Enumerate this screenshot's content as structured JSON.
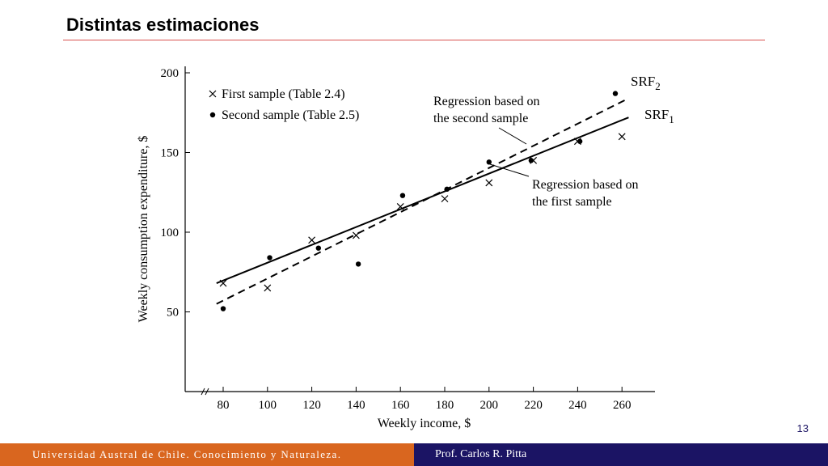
{
  "slide": {
    "title": "Distintas estimaciones",
    "page_number": "13",
    "footer_left": "Universidad Austral de Chile. Conocimiento y Naturaleza.",
    "footer_right": "Prof. Carlos R. Pitta",
    "colors": {
      "accent_orange": "#d9661f",
      "footer_navy": "#1b1464",
      "rule": "#d9534f"
    }
  },
  "chart_data": {
    "type": "scatter",
    "xlabel": "Weekly income, $",
    "ylabel": "Weekly consumption expenditure, $",
    "xlim": [
      70,
      268
    ],
    "ylim": [
      0,
      200
    ],
    "x_ticks": [
      80,
      100,
      120,
      140,
      160,
      180,
      200,
      220,
      240,
      260
    ],
    "y_ticks": [
      50,
      100,
      150,
      200
    ],
    "axis_break": true,
    "legend_placement": "top-left",
    "legend": [
      {
        "marker": "×",
        "label": "First sample (Table 2.4)"
      },
      {
        "marker": "•",
        "label": "Second sample (Table 2.5)"
      }
    ],
    "series": [
      {
        "name": "First sample (Table 2.4)",
        "marker": "x",
        "x": [
          80,
          100,
          120,
          140,
          160,
          180,
          200,
          220,
          240,
          260
        ],
        "y": [
          68,
          65,
          95,
          98,
          116,
          121,
          131,
          145,
          157,
          160
        ]
      },
      {
        "name": "Second sample (Table 2.5)",
        "marker": "dot",
        "x": [
          80,
          101,
          123,
          141,
          161,
          181,
          200,
          219,
          241,
          257
        ],
        "y": [
          52,
          84,
          90,
          80,
          123,
          127,
          144,
          145,
          157,
          187
        ]
      }
    ],
    "lines": [
      {
        "name": "SRF1",
        "style": "solid",
        "x": [
          77,
          263
        ],
        "y": [
          68,
          172
        ]
      },
      {
        "name": "SRF2",
        "style": "dashed",
        "x": [
          77,
          263
        ],
        "y": [
          55,
          184
        ]
      }
    ],
    "annotations": [
      {
        "text": "SRF",
        "sub": "2"
      },
      {
        "text": "SRF",
        "sub": "1"
      },
      {
        "lines": [
          "Regression based on",
          "the second sample"
        ]
      },
      {
        "lines": [
          "Regression based on",
          "the first sample"
        ]
      }
    ]
  }
}
